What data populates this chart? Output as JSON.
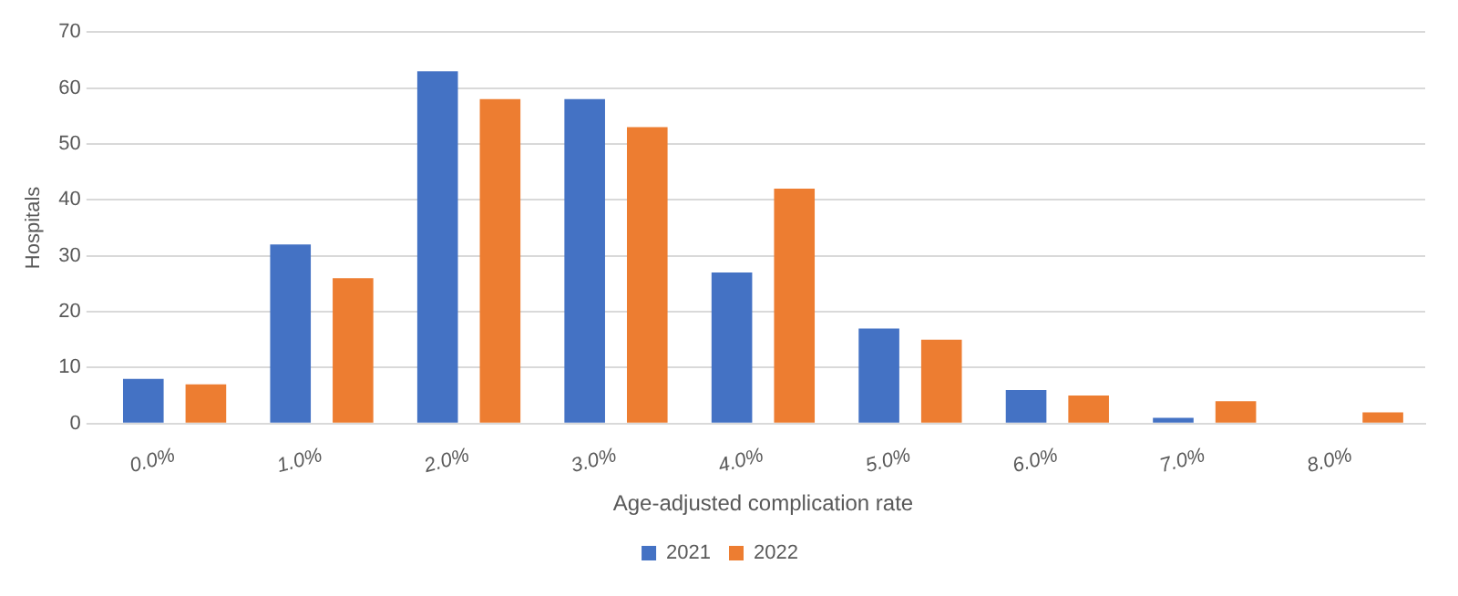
{
  "chart_data": {
    "type": "bar",
    "xlabel": "Age-adjusted complication rate",
    "ylabel": "Hospitals",
    "categories": [
      "0.0%",
      "1.0%",
      "2.0%",
      "3.0%",
      "4.0%",
      "5.0%",
      "6.0%",
      "7.0%",
      "8.0%"
    ],
    "series": [
      {
        "name": "2021",
        "color": "#4472c4",
        "values": [
          8,
          32,
          63,
          58,
          27,
          17,
          6,
          1,
          0
        ]
      },
      {
        "name": "2022",
        "color": "#ed7d31",
        "values": [
          7,
          26,
          58,
          53,
          42,
          15,
          5,
          4,
          2
        ]
      }
    ],
    "ylim": [
      0,
      70
    ],
    "yticks": [
      0,
      10,
      20,
      30,
      40,
      50,
      60,
      70
    ],
    "grid": "y",
    "legend": "bottom"
  }
}
